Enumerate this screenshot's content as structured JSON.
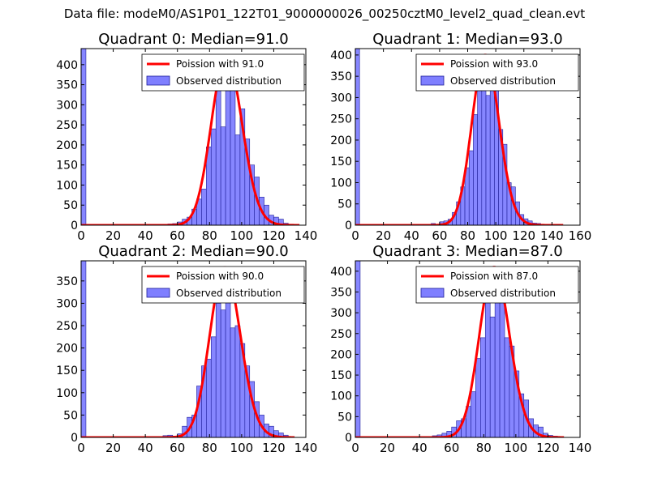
{
  "suptitle": "Data file: modeM0/AS1P01_122T01_9000000026_00250cztM0_level2_quad_clean.evt",
  "colors": {
    "poisson": "#ff0000",
    "bars": "#7f7fff",
    "bar_edge": "#1f1f99"
  },
  "chart_data": [
    {
      "type": "bar",
      "title": "Quadrant 0: Median=91.0",
      "median": 91,
      "xlim": [
        0,
        140
      ],
      "ylim": [
        0,
        440
      ],
      "xticks": [
        0,
        20,
        40,
        60,
        80,
        100,
        120,
        140
      ],
      "yticks": [
        0,
        50,
        100,
        150,
        200,
        250,
        300,
        350,
        400
      ],
      "legend": {
        "position": "top-right",
        "line_label": "Poission with 91.0",
        "bar_label": "Observed distribution"
      },
      "bin_width": 3,
      "bars": [
        {
          "x": 0,
          "h": 440
        },
        {
          "x": 48,
          "h": 2
        },
        {
          "x": 54,
          "h": 3
        },
        {
          "x": 57,
          "h": 4
        },
        {
          "x": 60,
          "h": 8
        },
        {
          "x": 63,
          "h": 15
        },
        {
          "x": 66,
          "h": 20
        },
        {
          "x": 69,
          "h": 40
        },
        {
          "x": 72,
          "h": 65
        },
        {
          "x": 75,
          "h": 90
        },
        {
          "x": 78,
          "h": 195
        },
        {
          "x": 81,
          "h": 240
        },
        {
          "x": 84,
          "h": 345
        },
        {
          "x": 87,
          "h": 245
        },
        {
          "x": 90,
          "h": 335
        },
        {
          "x": 93,
          "h": 385
        },
        {
          "x": 96,
          "h": 225
        },
        {
          "x": 99,
          "h": 290
        },
        {
          "x": 102,
          "h": 215
        },
        {
          "x": 105,
          "h": 150
        },
        {
          "x": 108,
          "h": 120
        },
        {
          "x": 111,
          "h": 70
        },
        {
          "x": 114,
          "h": 50
        },
        {
          "x": 117,
          "h": 25
        },
        {
          "x": 120,
          "h": 20
        },
        {
          "x": 123,
          "h": 15
        },
        {
          "x": 126,
          "h": 5
        },
        {
          "x": 129,
          "h": 2
        }
      ],
      "curve": {
        "mean": 91,
        "peak": 420,
        "x_end": 136
      }
    },
    {
      "type": "bar",
      "title": "Quadrant 1: Median=93.0",
      "median": 93,
      "xlim": [
        0,
        160
      ],
      "ylim": [
        0,
        415
      ],
      "xticks": [
        0,
        20,
        40,
        60,
        80,
        100,
        120,
        140,
        160
      ],
      "yticks": [
        0,
        50,
        100,
        150,
        200,
        250,
        300,
        350,
        400
      ],
      "legend": {
        "position": "top-right",
        "line_label": "Poission with 93.0",
        "bar_label": "Observed distribution"
      },
      "bin_width": 3,
      "bars": [
        {
          "x": 0,
          "h": 415
        },
        {
          "x": 54,
          "h": 4
        },
        {
          "x": 60,
          "h": 8
        },
        {
          "x": 63,
          "h": 10
        },
        {
          "x": 66,
          "h": 14
        },
        {
          "x": 69,
          "h": 30
        },
        {
          "x": 72,
          "h": 55
        },
        {
          "x": 75,
          "h": 90
        },
        {
          "x": 78,
          "h": 135
        },
        {
          "x": 81,
          "h": 175
        },
        {
          "x": 84,
          "h": 260
        },
        {
          "x": 87,
          "h": 330
        },
        {
          "x": 90,
          "h": 365
        },
        {
          "x": 93,
          "h": 305
        },
        {
          "x": 96,
          "h": 340
        },
        {
          "x": 99,
          "h": 325
        },
        {
          "x": 102,
          "h": 225
        },
        {
          "x": 105,
          "h": 190
        },
        {
          "x": 108,
          "h": 100
        },
        {
          "x": 111,
          "h": 90
        },
        {
          "x": 114,
          "h": 55
        },
        {
          "x": 117,
          "h": 25
        },
        {
          "x": 120,
          "h": 15
        },
        {
          "x": 123,
          "h": 10
        },
        {
          "x": 126,
          "h": 5
        },
        {
          "x": 129,
          "h": 4
        },
        {
          "x": 132,
          "h": 2
        }
      ],
      "curve": {
        "mean": 93,
        "peak": 400,
        "x_end": 148
      }
    },
    {
      "type": "bar",
      "title": "Quadrant 2: Median=90.0",
      "median": 90,
      "xlim": [
        0,
        140
      ],
      "ylim": [
        0,
        395
      ],
      "xticks": [
        0,
        20,
        40,
        60,
        80,
        100,
        120,
        140
      ],
      "yticks": [
        0,
        50,
        100,
        150,
        200,
        250,
        300,
        350
      ],
      "legend": {
        "position": "top-right",
        "line_label": "Poission with 90.0",
        "bar_label": "Observed distribution"
      },
      "bin_width": 3,
      "bars": [
        {
          "x": 0,
          "h": 395
        },
        {
          "x": 51,
          "h": 4
        },
        {
          "x": 54,
          "h": 5
        },
        {
          "x": 57,
          "h": 3
        },
        {
          "x": 60,
          "h": 8
        },
        {
          "x": 63,
          "h": 25
        },
        {
          "x": 66,
          "h": 45
        },
        {
          "x": 69,
          "h": 50
        },
        {
          "x": 72,
          "h": 115
        },
        {
          "x": 75,
          "h": 160
        },
        {
          "x": 78,
          "h": 175
        },
        {
          "x": 81,
          "h": 225
        },
        {
          "x": 84,
          "h": 300
        },
        {
          "x": 87,
          "h": 285
        },
        {
          "x": 90,
          "h": 345
        },
        {
          "x": 93,
          "h": 245
        },
        {
          "x": 96,
          "h": 250
        },
        {
          "x": 99,
          "h": 210
        },
        {
          "x": 102,
          "h": 160
        },
        {
          "x": 105,
          "h": 125
        },
        {
          "x": 108,
          "h": 80
        },
        {
          "x": 111,
          "h": 50
        },
        {
          "x": 114,
          "h": 30
        },
        {
          "x": 117,
          "h": 25
        },
        {
          "x": 120,
          "h": 15
        },
        {
          "x": 123,
          "h": 10
        },
        {
          "x": 126,
          "h": 5
        },
        {
          "x": 129,
          "h": 2
        }
      ],
      "curve": {
        "mean": 90,
        "peak": 380,
        "x_end": 133
      }
    },
    {
      "type": "bar",
      "title": "Quadrant 3: Median=87.0",
      "median": 87,
      "xlim": [
        0,
        140
      ],
      "ylim": [
        0,
        425
      ],
      "xticks": [
        0,
        20,
        40,
        60,
        80,
        100,
        120,
        140
      ],
      "yticks": [
        0,
        50,
        100,
        150,
        200,
        250,
        300,
        350,
        400
      ],
      "legend": {
        "position": "top-right",
        "line_label": "Poission with 87.0",
        "bar_label": "Observed distribution"
      },
      "bin_width": 3,
      "bars": [
        {
          "x": 0,
          "h": 425
        },
        {
          "x": 48,
          "h": 4
        },
        {
          "x": 51,
          "h": 6
        },
        {
          "x": 54,
          "h": 10
        },
        {
          "x": 57,
          "h": 15
        },
        {
          "x": 60,
          "h": 25
        },
        {
          "x": 63,
          "h": 40
        },
        {
          "x": 66,
          "h": 45
        },
        {
          "x": 69,
          "h": 75
        },
        {
          "x": 72,
          "h": 110
        },
        {
          "x": 75,
          "h": 190
        },
        {
          "x": 78,
          "h": 240
        },
        {
          "x": 81,
          "h": 365
        },
        {
          "x": 84,
          "h": 290
        },
        {
          "x": 87,
          "h": 405
        },
        {
          "x": 90,
          "h": 370
        },
        {
          "x": 93,
          "h": 240
        },
        {
          "x": 96,
          "h": 220
        },
        {
          "x": 99,
          "h": 160
        },
        {
          "x": 102,
          "h": 105
        },
        {
          "x": 105,
          "h": 90
        },
        {
          "x": 108,
          "h": 45
        },
        {
          "x": 111,
          "h": 30
        },
        {
          "x": 114,
          "h": 25
        },
        {
          "x": 117,
          "h": 10
        },
        {
          "x": 120,
          "h": 5
        },
        {
          "x": 123,
          "h": 3
        }
      ],
      "curve": {
        "mean": 87,
        "peak": 410,
        "x_end": 130
      }
    }
  ]
}
